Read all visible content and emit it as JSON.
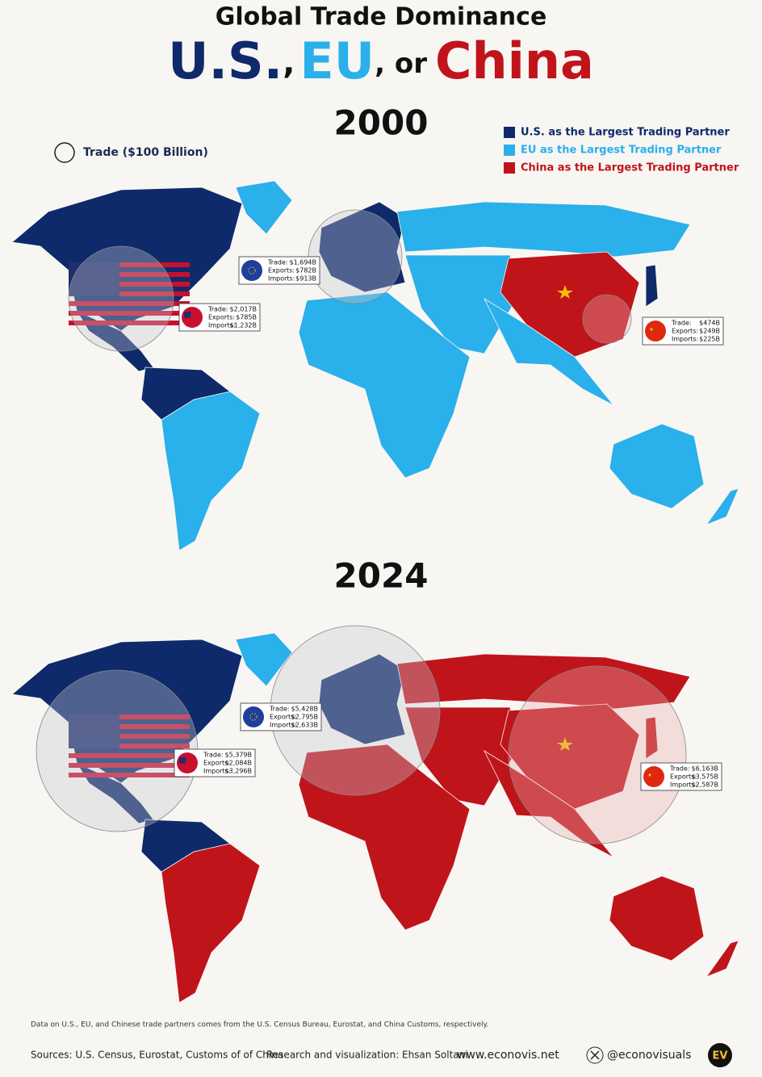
{
  "header": {
    "title": "Global Trade Dominance",
    "subtitle": [
      "U.S.",
      ",",
      "EU",
      ", or",
      "China"
    ]
  },
  "legend": {
    "bubble": "Trade ($100 Billion)",
    "items": [
      "U.S. as the Largest Trading Partner",
      "EU as the Largest Trading Partner",
      "China as the Largest Trading Partner"
    ]
  },
  "panels": [
    {
      "year": "2000",
      "boxes": [
        {
          "rows": [
            [
              "Trade:",
              "$2,017B"
            ],
            [
              "Exports:",
              "$785B"
            ],
            [
              "Imports:",
              "$1,232B"
            ]
          ]
        },
        {
          "rows": [
            [
              "Trade:",
              "$1,694B"
            ],
            [
              "Exports:",
              "$782B"
            ],
            [
              "Imports:",
              "$913B"
            ]
          ]
        },
        {
          "rows": [
            [
              "Trade:",
              "$474B"
            ],
            [
              "Exports:",
              "$249B"
            ],
            [
              "Imports:",
              "$225B"
            ]
          ]
        }
      ]
    },
    {
      "year": "2024",
      "boxes": [
        {
          "rows": [
            [
              "Trade:",
              "$5,379B"
            ],
            [
              "Exports:",
              "$2,084B"
            ],
            [
              "Imports:",
              "$3,296B"
            ]
          ]
        },
        {
          "rows": [
            [
              "Trade:",
              "$5,428B"
            ],
            [
              "Exports:",
              "$2,795B"
            ],
            [
              "Imports:",
              "$2,633B"
            ]
          ]
        },
        {
          "rows": [
            [
              "Trade:",
              "$6,163B"
            ],
            [
              "Exports:",
              "$3,575B"
            ],
            [
              "Imports:",
              "$2,587B"
            ]
          ]
        }
      ]
    }
  ],
  "footer": {
    "note": "Data on U.S., EU, and Chinese trade partners comes from the U.S. Census Bureau, Eurostat, and China Customs, respectively.",
    "sources": "Sources: U.S. Census, Eurostat, Customs of of China",
    "credit": "Research and visualization: Ehsan Soltani",
    "website": "www.econovis.net",
    "handle": "@econovisuals",
    "logo": "EV"
  }
}
